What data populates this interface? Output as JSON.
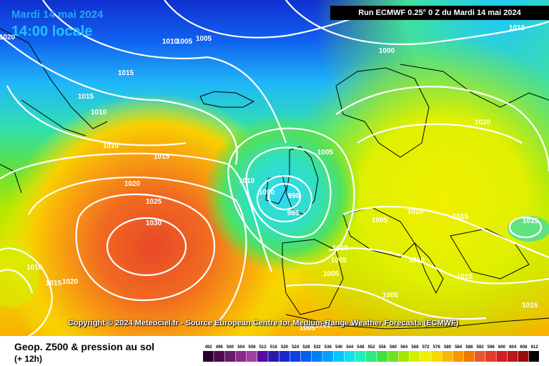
{
  "header": {
    "date": "Mardi 14 mai 2024",
    "time": "14:00 locale",
    "run": "Run ECMWF 0.25° 0 Z du Mardi 14 mai 2024"
  },
  "copyright": "Copyright © 2024 Meteociel.fr - Source European Centre for Medium-Range Weather Forecasts (ECMWF)",
  "legend": {
    "title": "Geop. Z500 & pression au sol",
    "subtitle": "(+ 12h)",
    "scale_values": [
      "492",
      "496",
      "500",
      "504",
      "508",
      "512",
      "516",
      "520",
      "524",
      "528",
      "532",
      "536",
      "540",
      "544",
      "548",
      "552",
      "556",
      "560",
      "564",
      "568",
      "572",
      "576",
      "580",
      "584",
      "588",
      "592",
      "596",
      "600",
      "604",
      "608",
      "612"
    ],
    "scale_colors": [
      "#2a002a",
      "#4b0a4b",
      "#6a1a6a",
      "#8a2a8a",
      "#a040a0",
      "#5a0aa0",
      "#2a1aaa",
      "#1a2acc",
      "#1240e0",
      "#0060f0",
      "#0080f8",
      "#00a0ff",
      "#00c8ff",
      "#10e0f0",
      "#20f0c0",
      "#30e880",
      "#40e040",
      "#70e020",
      "#a0e800",
      "#d0f000",
      "#f0f000",
      "#f8d800",
      "#f8b800",
      "#f89800",
      "#f07800",
      "#e85830",
      "#e03c28",
      "#d02020",
      "#b81818",
      "#9a0c0c",
      "#000000"
    ]
  },
  "isobar_labels": [
    {
      "text": "1020"
    },
    {
      "text": "1005"
    },
    {
      "text": "1005"
    },
    {
      "text": "1010"
    },
    {
      "text": "1015"
    },
    {
      "text": "1015"
    },
    {
      "text": "1010"
    },
    {
      "text": "1010"
    },
    {
      "text": "1015"
    },
    {
      "text": "1020"
    },
    {
      "text": "1025"
    },
    {
      "text": "1030"
    },
    {
      "text": "1010"
    },
    {
      "text": "1015"
    },
    {
      "text": "1020"
    },
    {
      "text": "1010"
    },
    {
      "text": "1000"
    },
    {
      "text": "990"
    },
    {
      "text": "995"
    },
    {
      "text": "1005"
    },
    {
      "text": "1000"
    },
    {
      "text": "1010"
    },
    {
      "text": "1020"
    },
    {
      "text": "1010"
    },
    {
      "text": "1005"
    },
    {
      "text": "1015"
    },
    {
      "text": "1015"
    },
    {
      "text": "1010"
    },
    {
      "text": "1005"
    },
    {
      "text": "1010"
    },
    {
      "text": "1005"
    },
    {
      "text": "1015"
    },
    {
      "text": "1005"
    },
    {
      "text": "1015"
    },
    {
      "text": "1005"
    },
    {
      "text": "1005"
    }
  ]
}
